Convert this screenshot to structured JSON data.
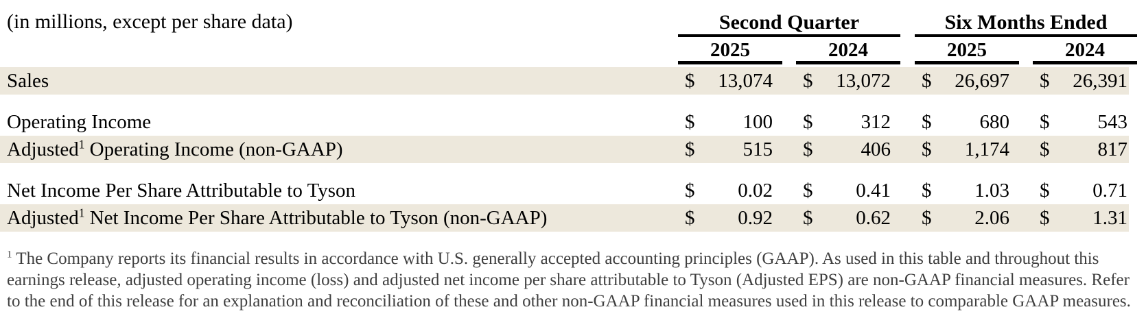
{
  "table": {
    "unit_note": "(in millions, except per share data)",
    "currency_symbol": "$",
    "col_groups": [
      {
        "label": "Second Quarter",
        "years": [
          "2025",
          "2024"
        ]
      },
      {
        "label": "Six Months Ended",
        "years": [
          "2025",
          "2024"
        ]
      }
    ],
    "rows": [
      {
        "label_pre": "Sales",
        "label_sup": "",
        "label_post": "",
        "shaded": true,
        "values": [
          "13,074",
          "13,072",
          "26,697",
          "26,391"
        ]
      },
      {
        "label_pre": "Operating Income",
        "label_sup": "",
        "label_post": "",
        "shaded": false,
        "values": [
          "100",
          "312",
          "680",
          "543"
        ]
      },
      {
        "label_pre": "Adjusted",
        "label_sup": "1",
        "label_post": " Operating Income (non-GAAP)",
        "shaded": true,
        "values": [
          "515",
          "406",
          "1,174",
          "817"
        ]
      },
      {
        "label_pre": "Net Income Per Share Attributable to Tyson",
        "label_sup": "",
        "label_post": "",
        "shaded": false,
        "values": [
          "0.02",
          "0.41",
          "1.03",
          "0.71"
        ]
      },
      {
        "label_pre": "Adjusted",
        "label_sup": "1",
        "label_post": " Net Income Per Share Attributable to Tyson (non-GAAP)",
        "shaded": true,
        "values": [
          "0.92",
          "0.62",
          "2.06",
          "1.31"
        ]
      }
    ]
  },
  "footnote": {
    "sup": "1",
    "text": "The Company reports its financial results in accordance with U.S. generally accepted accounting principles (GAAP). As used in this table and throughout this earnings release, adjusted operating income (loss) and adjusted net income per share attributable to Tyson (Adjusted EPS) are non-GAAP financial measures. Refer to the end of this release for an explanation and reconciliation of these and other non-GAAP financial measures used in this release to comparable GAAP measures."
  },
  "colors": {
    "row_shade": "#EDE8DC",
    "rule": "#000000",
    "text": "#000000",
    "footnote_text": "#3F3F3F",
    "page_background": "#FFFFFF"
  }
}
